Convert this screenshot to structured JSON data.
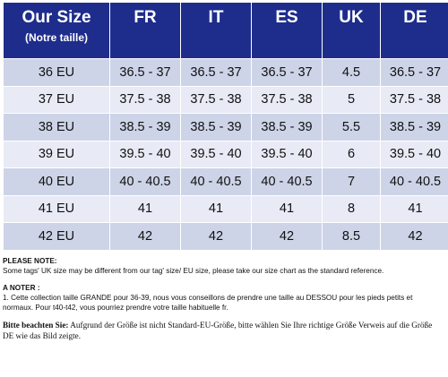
{
  "table": {
    "header": {
      "our_size": "Our Size",
      "our_size_sub": "(Notre taille)",
      "cols": [
        "FR",
        "IT",
        "ES",
        "UK",
        "DE"
      ]
    },
    "rows": [
      {
        "eu": "36 EU",
        "fr": "36.5 - 37",
        "it": "36.5 - 37",
        "es": "36.5 - 37",
        "uk": "4.5",
        "de": "36.5 - 37"
      },
      {
        "eu": "37 EU",
        "fr": "37.5 - 38",
        "it": "37.5 - 38",
        "es": "37.5 - 38",
        "uk": "5",
        "de": "37.5 - 38"
      },
      {
        "eu": "38 EU",
        "fr": "38.5 - 39",
        "it": "38.5 - 39",
        "es": "38.5 - 39",
        "uk": "5.5",
        "de": "38.5 - 39"
      },
      {
        "eu": "39 EU",
        "fr": "39.5 - 40",
        "it": "39.5 - 40",
        "es": "39.5 - 40",
        "uk": "6",
        "de": "39.5 - 40"
      },
      {
        "eu": "40 EU",
        "fr": "40 - 40.5",
        "it": "40 - 40.5",
        "es": "40 - 40.5",
        "uk": "7",
        "de": "40 - 40.5"
      },
      {
        "eu": "41 EU",
        "fr": "41",
        "it": "41",
        "es": "41",
        "uk": "8",
        "de": "41"
      },
      {
        "eu": "42 EU",
        "fr": "42",
        "it": "42",
        "es": "42",
        "uk": "8.5",
        "de": "42"
      }
    ],
    "colors": {
      "header_bg": "#1e2d8c",
      "row_odd": "#cdd4e8",
      "row_even": "#e8ebf5"
    }
  },
  "notes": {
    "please_note_title": "PLEASE NOTE:",
    "please_note_text": "Some tags' UK size  may be different from our tag' size/ EU size, please take our size chart as the standard reference.",
    "a_noter_title": "A NOTER :",
    "a_noter_text": "1. Cette collection taille GRANDE pour 36-39, nous vous conseillons de prendre une taille au DESSOU pour les pieds petits et normaux. Pour t40-t42, vous pourriez prendre votre taille habituelle fr.",
    "bitte_title": "Bitte beachten Sie:",
    "bitte_text": " Aufgrund der Größe ist nicht Standard-EU-Größe, bitte wählen Sie Ihre richtige Größe Verweis auf die Größe DE wie das Bild zeigte."
  }
}
